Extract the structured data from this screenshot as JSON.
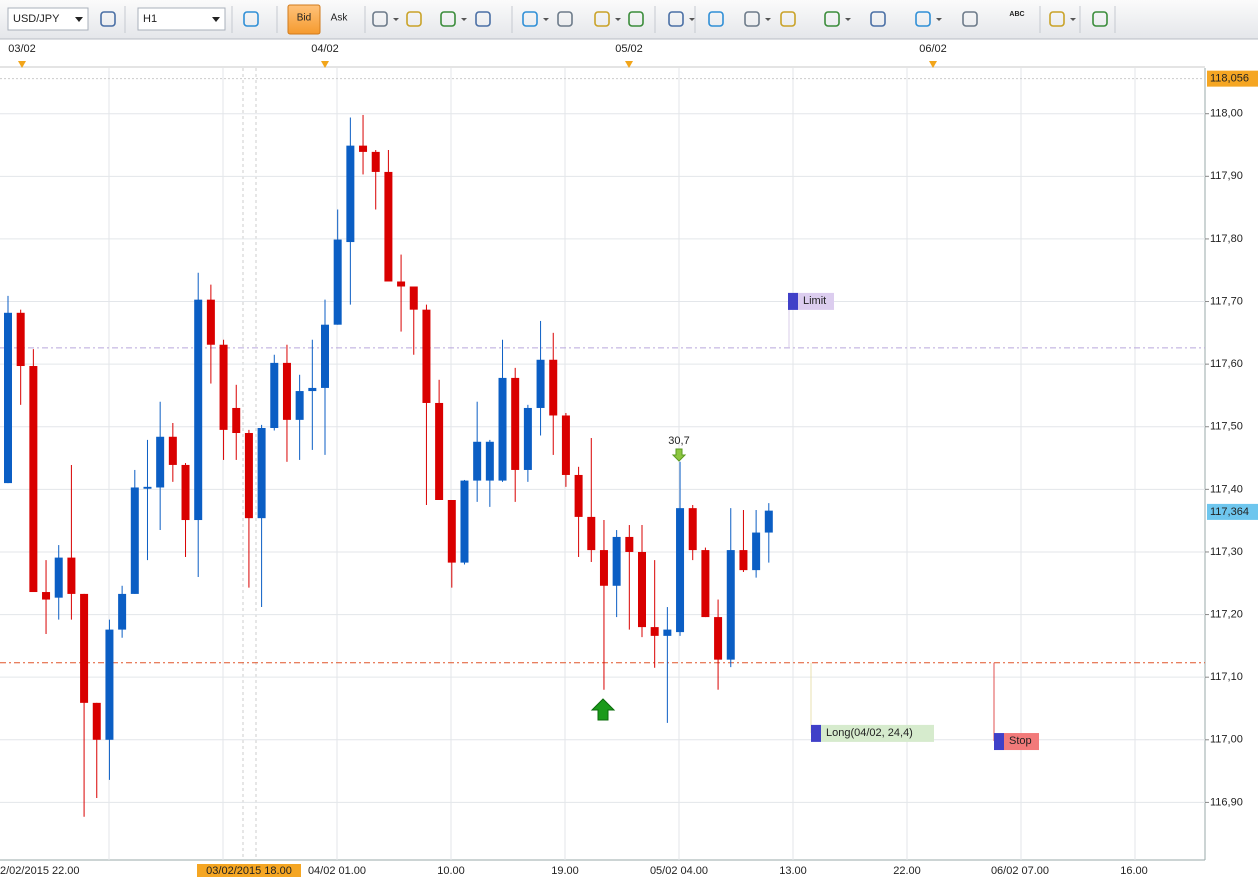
{
  "toolbar": {
    "symbol": "USD/JPY",
    "timeframe": "H1",
    "bid": "Bid",
    "ask": "Ask",
    "text_tool": "ABC"
  },
  "chart_data": {
    "type": "candlestick",
    "top_dates": [
      "03/02",
      "04/02",
      "05/02",
      "06/02"
    ],
    "x_labels": [
      "2/02/2015 22.00",
      "04/02 01.00",
      "10.00",
      "19.00",
      "05/02 04.00",
      "13.00",
      "22.00",
      "06/02 07.00",
      "16.00"
    ],
    "cursor_label": "03/02/2015 18.00",
    "ylim": [
      116.808,
      118.073
    ],
    "yticks": [
      {
        "value": 116.9,
        "label": "116,90"
      },
      {
        "value": 117.0,
        "label": "117,00"
      },
      {
        "value": 117.1,
        "label": "117,10"
      },
      {
        "value": 117.2,
        "label": "117,20"
      },
      {
        "value": 117.3,
        "label": "117,30"
      },
      {
        "value": 117.4,
        "label": "117,40"
      },
      {
        "value": 117.5,
        "label": "117,50"
      },
      {
        "value": 117.6,
        "label": "117,60"
      },
      {
        "value": 117.7,
        "label": "117,70"
      },
      {
        "value": 117.8,
        "label": "117,80"
      },
      {
        "value": 117.9,
        "label": "117,90"
      },
      {
        "value": 118.0,
        "label": "118,00"
      }
    ],
    "grid": true,
    "up_color": "#0b5ec4",
    "down_color": "#d90000",
    "open": [
      117.41,
      117.682,
      117.597,
      117.236,
      117.227,
      117.291,
      117.233,
      117.059,
      117.0,
      117.176,
      117.233,
      117.401,
      117.403,
      117.484,
      117.439,
      117.351,
      117.703,
      117.631,
      117.53,
      117.49,
      117.354,
      117.498,
      117.602,
      117.511,
      117.557,
      117.562,
      117.663,
      117.795,
      117.949,
      117.939,
      117.907,
      117.732,
      117.724,
      117.687,
      117.538,
      117.383,
      117.283,
      117.414,
      117.414,
      117.414,
      117.578,
      117.431,
      117.53,
      117.607,
      117.518,
      117.423,
      117.356,
      117.303,
      117.246,
      117.324,
      117.3,
      117.18,
      117.166,
      117.172,
      117.37,
      117.303,
      117.196,
      117.128,
      117.303,
      117.271,
      117.331
    ],
    "high": [
      117.709,
      117.687,
      117.624,
      117.287,
      117.311,
      117.439,
      117.233,
      117.059,
      117.192,
      117.246,
      117.431,
      117.479,
      117.54,
      117.506,
      117.442,
      117.746,
      117.727,
      117.639,
      117.567,
      117.495,
      117.503,
      117.615,
      117.631,
      117.583,
      117.639,
      117.703,
      117.847,
      117.994,
      117.998,
      117.942,
      117.942,
      117.775,
      117.724,
      117.695,
      117.575,
      117.383,
      117.415,
      117.54,
      117.479,
      117.639,
      117.594,
      117.535,
      117.669,
      117.65,
      117.522,
      117.436,
      117.482,
      117.351,
      117.335,
      117.343,
      117.343,
      117.287,
      117.212,
      117.444,
      117.375,
      117.307,
      117.224,
      117.37,
      117.367,
      117.367,
      117.378
    ],
    "low": [
      117.41,
      117.535,
      117.236,
      117.169,
      117.192,
      117.192,
      116.877,
      116.907,
      116.936,
      117.163,
      117.233,
      117.287,
      117.335,
      117.412,
      117.292,
      117.26,
      117.569,
      117.447,
      117.447,
      117.243,
      117.212,
      117.494,
      117.444,
      117.447,
      117.463,
      117.455,
      117.663,
      117.695,
      117.903,
      117.847,
      117.732,
      117.652,
      117.615,
      117.375,
      117.383,
      117.243,
      117.28,
      117.38,
      117.372,
      117.412,
      117.38,
      117.412,
      117.486,
      117.455,
      117.404,
      117.292,
      117.284,
      117.08,
      117.196,
      117.176,
      117.164,
      117.115,
      117.027,
      117.166,
      117.287,
      117.196,
      117.08,
      117.116,
      117.268,
      117.259,
      117.283
    ],
    "close": [
      117.682,
      117.597,
      117.236,
      117.224,
      117.291,
      117.233,
      117.059,
      117.0,
      117.176,
      117.233,
      117.403,
      117.404,
      117.484,
      117.439,
      117.351,
      117.703,
      117.631,
      117.495,
      117.49,
      117.354,
      117.498,
      117.602,
      117.511,
      117.557,
      117.562,
      117.663,
      117.799,
      117.949,
      117.939,
      117.907,
      117.732,
      117.724,
      117.687,
      117.538,
      117.383,
      117.283,
      117.414,
      117.476,
      117.476,
      117.578,
      117.431,
      117.53,
      117.607,
      117.518,
      117.423,
      117.356,
      117.303,
      117.246,
      117.324,
      117.3,
      117.18,
      117.166,
      117.176,
      117.37,
      117.303,
      117.196,
      117.128,
      117.303,
      117.271,
      117.331,
      117.366
    ],
    "top_marker": {
      "value": 118.056,
      "label": "118,056"
    },
    "current_price": {
      "value": 117.364,
      "label": "117,364"
    },
    "limit": {
      "label": "Limit",
      "value": 117.626,
      "box": 117.701
    },
    "position": {
      "label": "Long(04/02, 24,4)",
      "value": 117.123,
      "box": 117.011
    },
    "stop": {
      "label": "Stop",
      "box": 116.998
    },
    "signal_label": "30,7"
  }
}
